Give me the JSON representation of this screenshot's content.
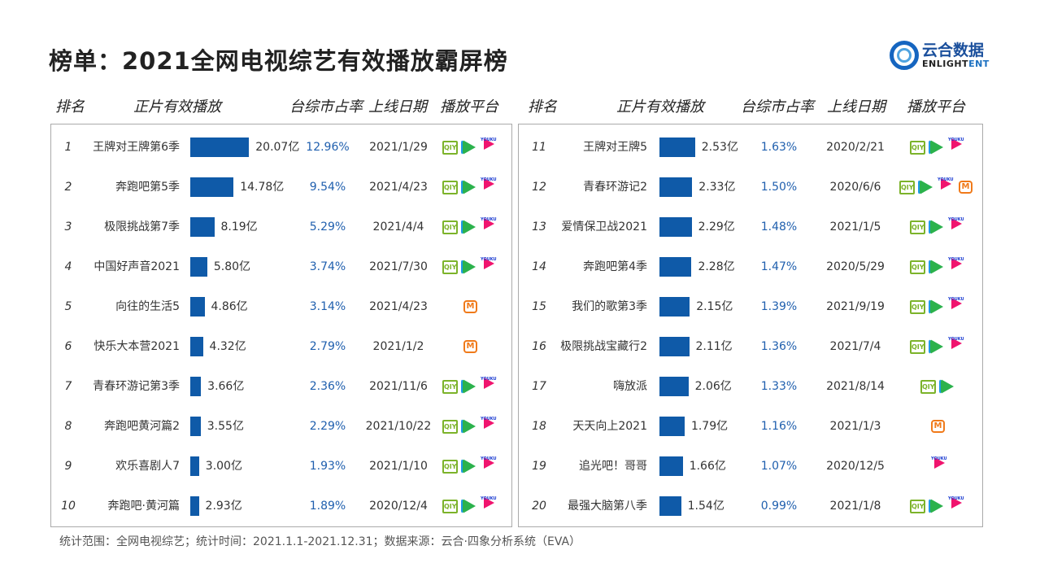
{
  "title": "榜单：2021全网电视综艺有效播放霸屏榜",
  "logo": {
    "cn": "云合数据",
    "en_a": "ENLIGHT",
    "en_b": "ENT"
  },
  "headers": [
    "排名",
    "正片有效播放",
    "台综市占率",
    "上线日期",
    "播放平台"
  ],
  "left": [
    {
      "rank": "1",
      "name": "王牌对王牌第6季",
      "value": 20.07,
      "label": "20.07亿",
      "share": "12.96%",
      "date": "2021/1/29",
      "platforms": [
        "iqiyi",
        "tencent",
        "youku"
      ]
    },
    {
      "rank": "2",
      "name": "奔跑吧第5季",
      "value": 14.78,
      "label": "14.78亿",
      "share": "9.54%",
      "date": "2021/4/23",
      "platforms": [
        "iqiyi",
        "tencent",
        "youku"
      ]
    },
    {
      "rank": "3",
      "name": "极限挑战第7季",
      "value": 8.19,
      "label": "8.19亿",
      "share": "5.29%",
      "date": "2021/4/4",
      "platforms": [
        "iqiyi",
        "tencent",
        "youku"
      ]
    },
    {
      "rank": "4",
      "name": "中国好声音2021",
      "value": 5.8,
      "label": "5.80亿",
      "share": "3.74%",
      "date": "2021/7/30",
      "platforms": [
        "iqiyi",
        "tencent",
        "youku"
      ]
    },
    {
      "rank": "5",
      "name": "向往的生活5",
      "value": 4.86,
      "label": "4.86亿",
      "share": "3.14%",
      "date": "2021/4/23",
      "platforms": [
        "mango"
      ]
    },
    {
      "rank": "6",
      "name": "快乐大本营2021",
      "value": 4.32,
      "label": "4.32亿",
      "share": "2.79%",
      "date": "2021/1/2",
      "platforms": [
        "mango"
      ]
    },
    {
      "rank": "7",
      "name": "青春环游记第3季",
      "value": 3.66,
      "label": "3.66亿",
      "share": "2.36%",
      "date": "2021/11/6",
      "platforms": [
        "iqiyi",
        "tencent",
        "youku"
      ]
    },
    {
      "rank": "8",
      "name": "奔跑吧黄河篇2",
      "value": 3.55,
      "label": "3.55亿",
      "share": "2.29%",
      "date": "2021/10/22",
      "platforms": [
        "iqiyi",
        "tencent",
        "youku"
      ]
    },
    {
      "rank": "9",
      "name": "欢乐喜剧人7",
      "value": 3.0,
      "label": "3.00亿",
      "share": "1.93%",
      "date": "2021/1/10",
      "platforms": [
        "iqiyi",
        "tencent",
        "youku"
      ]
    },
    {
      "rank": "10",
      "name": "奔跑吧·黄河篇",
      "value": 2.93,
      "label": "2.93亿",
      "share": "1.89%",
      "date": "2020/12/4",
      "platforms": [
        "iqiyi",
        "tencent",
        "youku"
      ]
    }
  ],
  "right": [
    {
      "rank": "11",
      "name": "王牌对王牌5",
      "value": 2.53,
      "label": "2.53亿",
      "share": "1.63%",
      "date": "2020/2/21",
      "platforms": [
        "iqiyi",
        "tencent",
        "youku"
      ]
    },
    {
      "rank": "12",
      "name": "青春环游记2",
      "value": 2.33,
      "label": "2.33亿",
      "share": "1.50%",
      "date": "2020/6/6",
      "platforms": [
        "iqiyi",
        "tencent",
        "youku",
        "mango"
      ]
    },
    {
      "rank": "13",
      "name": "爱情保卫战2021",
      "value": 2.29,
      "label": "2.29亿",
      "share": "1.48%",
      "date": "2021/1/5",
      "platforms": [
        "iqiyi",
        "tencent",
        "youku"
      ]
    },
    {
      "rank": "14",
      "name": "奔跑吧第4季",
      "value": 2.28,
      "label": "2.28亿",
      "share": "1.47%",
      "date": "2020/5/29",
      "platforms": [
        "iqiyi",
        "tencent",
        "youku"
      ]
    },
    {
      "rank": "15",
      "name": "我们的歌第3季",
      "value": 2.15,
      "label": "2.15亿",
      "share": "1.39%",
      "date": "2021/9/19",
      "platforms": [
        "iqiyi",
        "tencent",
        "youku"
      ]
    },
    {
      "rank": "16",
      "name": "极限挑战宝藏行2",
      "value": 2.11,
      "label": "2.11亿",
      "share": "1.36%",
      "date": "2021/7/4",
      "platforms": [
        "iqiyi",
        "tencent",
        "youku"
      ]
    },
    {
      "rank": "17",
      "name": "嗨放派",
      "value": 2.06,
      "label": "2.06亿",
      "share": "1.33%",
      "date": "2021/8/14",
      "platforms": [
        "iqiyi",
        "tencent"
      ]
    },
    {
      "rank": "18",
      "name": "天天向上2021",
      "value": 1.79,
      "label": "1.79亿",
      "share": "1.16%",
      "date": "2021/1/3",
      "platforms": [
        "mango"
      ]
    },
    {
      "rank": "19",
      "name": "追光吧！哥哥",
      "value": 1.66,
      "label": "1.66亿",
      "share": "1.07%",
      "date": "2020/12/5",
      "platforms": [
        "youku"
      ]
    },
    {
      "rank": "20",
      "name": "最强大脑第八季",
      "value": 1.54,
      "label": "1.54亿",
      "share": "0.99%",
      "date": "2021/1/8",
      "platforms": [
        "iqiyi",
        "tencent",
        "youku"
      ]
    }
  ],
  "platform_labels": {
    "iqiyi": "QIY",
    "youku": "YOUKU",
    "mango": "M"
  },
  "footer": "统计范围：全网电视综艺；统计时间：2021.1.1-2021.12.31；数据来源：云合·四象分析系统（EVA）"
}
